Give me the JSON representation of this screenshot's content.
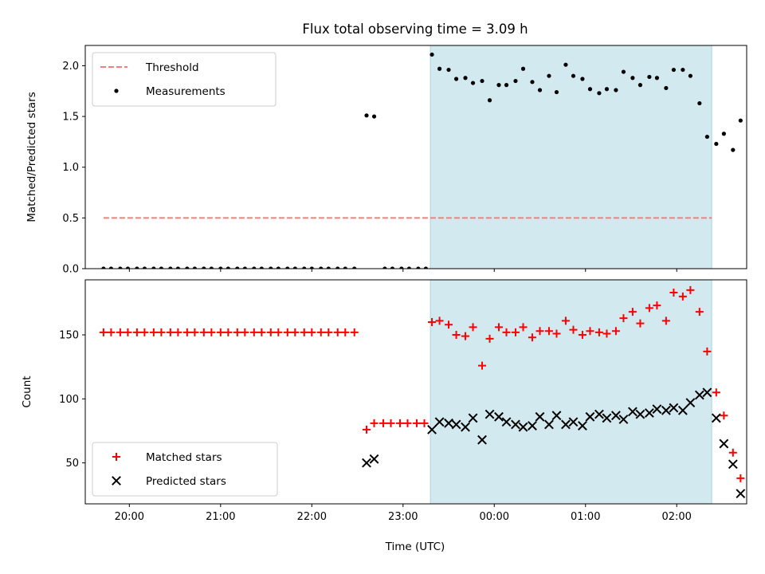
{
  "chart_data": {
    "title": "Flux total observing time = 3.09 h",
    "xlabel": "Time (UTC)",
    "x_ticks": [
      "20:00",
      "21:00",
      "22:00",
      "23:00",
      "00:00",
      "01:00",
      "02:00"
    ],
    "shaded_interval": {
      "start": "23:18",
      "end": "02:23",
      "color": "#d3e9f0"
    },
    "panels": [
      {
        "type": "scatter",
        "ylabel": "Matched/Predicted stars",
        "ylim": [
          0,
          2.2
        ],
        "y_ticks": [
          "0.0",
          "0.5",
          "1.0",
          "1.5",
          "2.0"
        ],
        "legend": {
          "position": "top-left",
          "entries": [
            "Threshold",
            "Measurements"
          ]
        },
        "threshold": {
          "name": "Threshold",
          "value": 0.5,
          "from": "19:43",
          "to": "02:23",
          "color": "#f08080",
          "style": "dashed"
        },
        "series": [
          {
            "name": "Measurements",
            "marker": "dot",
            "color": "#000000",
            "points": [
              [
                "19:43",
                0
              ],
              [
                "19:48",
                0
              ],
              [
                "19:54",
                0
              ],
              [
                "19:59",
                0
              ],
              [
                "20:05",
                0
              ],
              [
                "20:10",
                0
              ],
              [
                "20:16",
                0
              ],
              [
                "20:21",
                0
              ],
              [
                "20:27",
                0
              ],
              [
                "20:32",
                0
              ],
              [
                "20:38",
                0
              ],
              [
                "20:43",
                0
              ],
              [
                "20:49",
                0
              ],
              [
                "20:54",
                0
              ],
              [
                "21:00",
                0
              ],
              [
                "21:05",
                0
              ],
              [
                "21:11",
                0
              ],
              [
                "21:16",
                0
              ],
              [
                "21:22",
                0
              ],
              [
                "21:27",
                0
              ],
              [
                "21:33",
                0
              ],
              [
                "21:38",
                0
              ],
              [
                "21:44",
                0
              ],
              [
                "21:49",
                0
              ],
              [
                "21:55",
                0
              ],
              [
                "22:00",
                0
              ],
              [
                "22:06",
                0
              ],
              [
                "22:11",
                0
              ],
              [
                "22:17",
                0
              ],
              [
                "22:22",
                0
              ],
              [
                "22:28",
                0
              ],
              [
                "22:36",
                1.51
              ],
              [
                "22:41",
                1.5
              ],
              [
                "22:48",
                0
              ],
              [
                "22:53",
                0
              ],
              [
                "22:59",
                0
              ],
              [
                "23:04",
                0
              ],
              [
                "23:10",
                0
              ],
              [
                "23:15",
                0
              ],
              [
                "23:19",
                2.11
              ],
              [
                "23:24",
                1.97
              ],
              [
                "23:30",
                1.96
              ],
              [
                "23:35",
                1.87
              ],
              [
                "23:41",
                1.88
              ],
              [
                "23:46",
                1.83
              ],
              [
                "23:52",
                1.85
              ],
              [
                "23:57",
                1.66
              ],
              [
                "00:03",
                1.81
              ],
              [
                "00:08",
                1.81
              ],
              [
                "00:14",
                1.85
              ],
              [
                "00:19",
                1.97
              ],
              [
                "00:25",
                1.84
              ],
              [
                "00:30",
                1.76
              ],
              [
                "00:36",
                1.9
              ],
              [
                "00:41",
                1.74
              ],
              [
                "00:47",
                2.01
              ],
              [
                "00:52",
                1.9
              ],
              [
                "00:58",
                1.87
              ],
              [
                "01:03",
                1.77
              ],
              [
                "01:09",
                1.73
              ],
              [
                "01:14",
                1.77
              ],
              [
                "01:20",
                1.76
              ],
              [
                "01:25",
                1.94
              ],
              [
                "01:31",
                1.88
              ],
              [
                "01:36",
                1.81
              ],
              [
                "01:42",
                1.89
              ],
              [
                "01:47",
                1.88
              ],
              [
                "01:53",
                1.78
              ],
              [
                "01:58",
                1.96
              ],
              [
                "02:04",
                1.96
              ],
              [
                "02:09",
                1.9
              ],
              [
                "02:15",
                1.63
              ],
              [
                "02:20",
                1.3
              ],
              [
                "02:26",
                1.23
              ],
              [
                "02:31",
                1.33
              ],
              [
                "02:37",
                1.17
              ],
              [
                "02:42",
                1.46
              ]
            ]
          }
        ]
      },
      {
        "type": "scatter",
        "ylabel": "Count",
        "ylim": [
          18,
          193
        ],
        "y_ticks": [
          "50",
          "100",
          "150"
        ],
        "legend": {
          "position": "bottom-left",
          "entries": [
            "Matched stars",
            "Predicted stars"
          ]
        },
        "series": [
          {
            "name": "Matched stars",
            "marker": "plus",
            "color": "#ff0000",
            "points": [
              [
                "19:43",
                152
              ],
              [
                "19:48",
                152
              ],
              [
                "19:54",
                152
              ],
              [
                "19:59",
                152
              ],
              [
                "20:05",
                152
              ],
              [
                "20:10",
                152
              ],
              [
                "20:16",
                152
              ],
              [
                "20:21",
                152
              ],
              [
                "20:27",
                152
              ],
              [
                "20:32",
                152
              ],
              [
                "20:38",
                152
              ],
              [
                "20:43",
                152
              ],
              [
                "20:49",
                152
              ],
              [
                "20:54",
                152
              ],
              [
                "21:00",
                152
              ],
              [
                "21:05",
                152
              ],
              [
                "21:11",
                152
              ],
              [
                "21:16",
                152
              ],
              [
                "21:22",
                152
              ],
              [
                "21:27",
                152
              ],
              [
                "21:33",
                152
              ],
              [
                "21:38",
                152
              ],
              [
                "21:44",
                152
              ],
              [
                "21:49",
                152
              ],
              [
                "21:55",
                152
              ],
              [
                "22:00",
                152
              ],
              [
                "22:06",
                152
              ],
              [
                "22:11",
                152
              ],
              [
                "22:17",
                152
              ],
              [
                "22:22",
                152
              ],
              [
                "22:28",
                152
              ],
              [
                "22:36",
                76
              ],
              [
                "22:41",
                81
              ],
              [
                "22:47",
                81
              ],
              [
                "22:52",
                81
              ],
              [
                "22:58",
                81
              ],
              [
                "23:03",
                81
              ],
              [
                "23:09",
                81
              ],
              [
                "23:14",
                81
              ],
              [
                "23:19",
                160
              ],
              [
                "23:24",
                161
              ],
              [
                "23:30",
                158
              ],
              [
                "23:35",
                150
              ],
              [
                "23:41",
                149
              ],
              [
                "23:46",
                156
              ],
              [
                "23:52",
                126
              ],
              [
                "23:57",
                147
              ],
              [
                "00:03",
                156
              ],
              [
                "00:08",
                152
              ],
              [
                "00:14",
                152
              ],
              [
                "00:19",
                156
              ],
              [
                "00:25",
                148
              ],
              [
                "00:30",
                153
              ],
              [
                "00:36",
                153
              ],
              [
                "00:41",
                151
              ],
              [
                "00:47",
                161
              ],
              [
                "00:52",
                154
              ],
              [
                "00:58",
                150
              ],
              [
                "01:03",
                153
              ],
              [
                "01:09",
                152
              ],
              [
                "01:14",
                151
              ],
              [
                "01:20",
                153
              ],
              [
                "01:25",
                163
              ],
              [
                "01:31",
                168
              ],
              [
                "01:36",
                159
              ],
              [
                "01:42",
                171
              ],
              [
                "01:47",
                173
              ],
              [
                "01:53",
                161
              ],
              [
                "01:58",
                183
              ],
              [
                "02:04",
                180
              ],
              [
                "02:09",
                185
              ],
              [
                "02:15",
                168
              ],
              [
                "02:20",
                137
              ],
              [
                "02:26",
                105
              ],
              [
                "02:31",
                87
              ],
              [
                "02:37",
                58
              ],
              [
                "02:42",
                38
              ]
            ]
          },
          {
            "name": "Predicted stars",
            "marker": "x",
            "color": "#000000",
            "points": [
              [
                "22:36",
                50
              ],
              [
                "22:41",
                53
              ],
              [
                "23:19",
                76
              ],
              [
                "23:24",
                82
              ],
              [
                "23:30",
                81
              ],
              [
                "23:35",
                80
              ],
              [
                "23:41",
                78
              ],
              [
                "23:46",
                85
              ],
              [
                "23:52",
                68
              ],
              [
                "23:57",
                88
              ],
              [
                "00:03",
                86
              ],
              [
                "00:08",
                82
              ],
              [
                "00:14",
                80
              ],
              [
                "00:19",
                78
              ],
              [
                "00:25",
                79
              ],
              [
                "00:30",
                86
              ],
              [
                "00:36",
                80
              ],
              [
                "00:41",
                87
              ],
              [
                "00:47",
                80
              ],
              [
                "00:52",
                82
              ],
              [
                "00:58",
                79
              ],
              [
                "01:03",
                86
              ],
              [
                "01:09",
                88
              ],
              [
                "01:14",
                85
              ],
              [
                "01:20",
                87
              ],
              [
                "01:25",
                84
              ],
              [
                "01:31",
                90
              ],
              [
                "01:36",
                88
              ],
              [
                "01:42",
                89
              ],
              [
                "01:47",
                92
              ],
              [
                "01:53",
                91
              ],
              [
                "01:58",
                93
              ],
              [
                "02:04",
                91
              ],
              [
                "02:09",
                97
              ],
              [
                "02:15",
                103
              ],
              [
                "02:20",
                105
              ],
              [
                "02:26",
                85
              ],
              [
                "02:31",
                65
              ],
              [
                "02:37",
                49
              ],
              [
                "02:42",
                26
              ]
            ]
          }
        ]
      }
    ]
  }
}
